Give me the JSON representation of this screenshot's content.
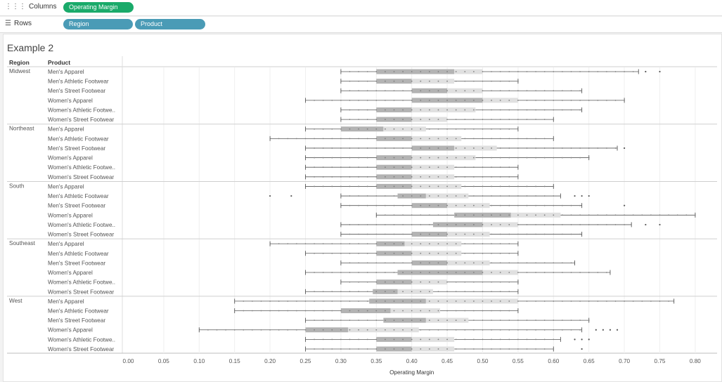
{
  "shelves": {
    "columns_label": "Columns",
    "columns_pill": "Operating Margin",
    "rows_label": "Rows",
    "rows_pills": [
      "Region",
      "Product"
    ],
    "columns_icon": "columns-icon",
    "rows_icon": "rows-icon"
  },
  "sheet": {
    "title": "Example 2"
  },
  "chart_data": {
    "type": "box",
    "title": "Example 2",
    "xlabel": "Operating Margin",
    "headers": {
      "region": "Region",
      "product": "Product"
    },
    "xlim": [
      0.0,
      0.8
    ],
    "ticks": [
      "0.00",
      "0.05",
      "0.10",
      "0.15",
      "0.20",
      "0.25",
      "0.30",
      "0.35",
      "0.40",
      "0.45",
      "0.50",
      "0.55",
      "0.60",
      "0.65",
      "0.70",
      "0.75",
      "0.80"
    ],
    "tick_values": [
      0,
      0.05,
      0.1,
      0.15,
      0.2,
      0.25,
      0.3,
      0.35,
      0.4,
      0.45,
      0.5,
      0.55,
      0.6,
      0.65,
      0.7,
      0.75,
      0.8
    ],
    "colors": {
      "box_dark": "#b3b3b3",
      "box_light": "#e0e0e0",
      "whisker": "#555555",
      "dot": "#7f7f7f"
    },
    "groups": [
      {
        "region": "Midwest",
        "rows": [
          {
            "product": "Men's Apparel",
            "box": [
              0.3,
              0.35,
              0.46,
              0.5,
              0.72
            ],
            "out": [
              0.73,
              0.75
            ]
          },
          {
            "product": "Men's Athletic Footwear",
            "box": [
              0.3,
              0.35,
              0.4,
              0.46,
              0.55
            ],
            "out": []
          },
          {
            "product": "Men's Street Footwear",
            "box": [
              0.3,
              0.4,
              0.45,
              0.5,
              0.64
            ],
            "out": []
          },
          {
            "product": "Women's Apparel",
            "box": [
              0.25,
              0.4,
              0.5,
              0.55,
              0.7
            ],
            "out": []
          },
          {
            "product": "Women's Athletic Footwe..",
            "box": [
              0.3,
              0.35,
              0.4,
              0.49,
              0.64
            ],
            "out": []
          },
          {
            "product": "Women's Street Footwear",
            "box": [
              0.3,
              0.35,
              0.4,
              0.45,
              0.6
            ],
            "out": []
          }
        ]
      },
      {
        "region": "Northeast",
        "rows": [
          {
            "product": "Men's Apparel",
            "box": [
              0.25,
              0.3,
              0.36,
              0.42,
              0.55
            ],
            "out": []
          },
          {
            "product": "Men's Athletic Footwear",
            "box": [
              0.2,
              0.35,
              0.4,
              0.47,
              0.6
            ],
            "out": []
          },
          {
            "product": "Men's Street Footwear",
            "box": [
              0.25,
              0.4,
              0.46,
              0.52,
              0.69
            ],
            "out": [
              0.7
            ]
          },
          {
            "product": "Women's Apparel",
            "box": [
              0.25,
              0.35,
              0.4,
              0.49,
              0.65
            ],
            "out": []
          },
          {
            "product": "Women's Athletic Footwe..",
            "box": [
              0.25,
              0.35,
              0.4,
              0.46,
              0.55
            ],
            "out": []
          },
          {
            "product": "Women's Street Footwear",
            "box": [
              0.25,
              0.35,
              0.4,
              0.46,
              0.55
            ],
            "out": []
          }
        ]
      },
      {
        "region": "South",
        "rows": [
          {
            "product": "Men's Apparel",
            "box": [
              0.25,
              0.35,
              0.4,
              0.47,
              0.6
            ],
            "out": []
          },
          {
            "product": "Men's Athletic Footwear",
            "box": [
              0.3,
              0.38,
              0.42,
              0.48,
              0.61
            ],
            "out": [
              0.2,
              0.23,
              0.63,
              0.64,
              0.65
            ]
          },
          {
            "product": "Men's Street Footwear",
            "box": [
              0.3,
              0.4,
              0.45,
              0.51,
              0.64
            ],
            "out": [
              0.7
            ]
          },
          {
            "product": "Women's Apparel",
            "box": [
              0.35,
              0.46,
              0.54,
              0.61,
              0.8
            ],
            "out": []
          },
          {
            "product": "Women's Athletic Footwe..",
            "box": [
              0.3,
              0.43,
              0.5,
              0.55,
              0.71
            ],
            "out": [
              0.73,
              0.75
            ]
          },
          {
            "product": "Women's Street Footwear",
            "box": [
              0.3,
              0.4,
              0.45,
              0.51,
              0.64
            ],
            "out": []
          }
        ]
      },
      {
        "region": "Southeast",
        "rows": [
          {
            "product": "Men's Apparel",
            "box": [
              0.2,
              0.35,
              0.39,
              0.47,
              0.55
            ],
            "out": []
          },
          {
            "product": "Men's Athletic Footwear",
            "box": [
              0.25,
              0.35,
              0.4,
              0.47,
              0.55
            ],
            "out": []
          },
          {
            "product": "Men's Street Footwear",
            "box": [
              0.3,
              0.4,
              0.45,
              0.51,
              0.63
            ],
            "out": []
          },
          {
            "product": "Women's Apparel",
            "box": [
              0.25,
              0.38,
              0.5,
              0.55,
              0.68
            ],
            "out": []
          },
          {
            "product": "Women's Athletic Footwe..",
            "box": [
              0.3,
              0.35,
              0.4,
              0.45,
              0.55
            ],
            "out": []
          },
          {
            "product": "Women's Street Footwear",
            "box": [
              0.25,
              0.345,
              0.38,
              0.43,
              0.55
            ],
            "out": []
          }
        ]
      },
      {
        "region": "West",
        "rows": [
          {
            "product": "Men's Apparel",
            "box": [
              0.15,
              0.34,
              0.42,
              0.55,
              0.77
            ],
            "out": []
          },
          {
            "product": "Men's Athletic Footwear",
            "box": [
              0.15,
              0.3,
              0.37,
              0.44,
              0.55
            ],
            "out": []
          },
          {
            "product": "Men's Street Footwear",
            "box": [
              0.25,
              0.36,
              0.42,
              0.48,
              0.65
            ],
            "out": []
          },
          {
            "product": "Women's Apparel",
            "box": [
              0.1,
              0.25,
              0.31,
              0.41,
              0.64
            ],
            "out": [
              0.66,
              0.67,
              0.68,
              0.69
            ]
          },
          {
            "product": "Women's Athletic Footwe..",
            "box": [
              0.25,
              0.35,
              0.4,
              0.46,
              0.61
            ],
            "out": [
              0.63,
              0.64,
              0.65
            ]
          },
          {
            "product": "Women's Street Footwear",
            "box": [
              0.25,
              0.35,
              0.4,
              0.46,
              0.6
            ],
            "out": [
              0.64
            ]
          }
        ]
      }
    ]
  }
}
